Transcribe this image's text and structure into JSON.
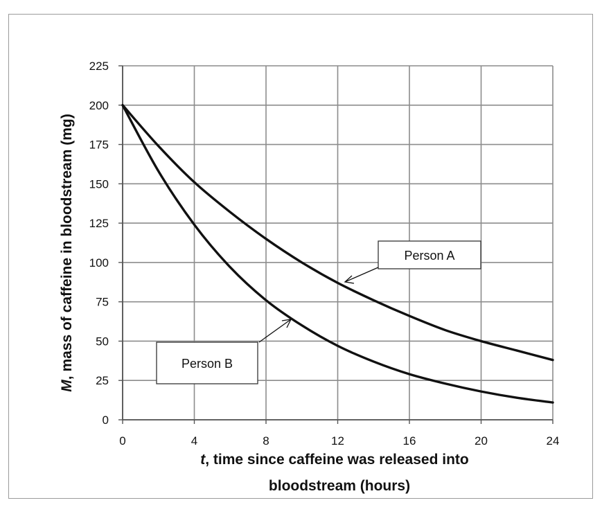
{
  "chart_data": {
    "type": "line",
    "xlabel": {
      "var": "t",
      "text": ", time since caffeine was released into",
      "line2": "bloodstream (hours)"
    },
    "ylabel": {
      "var": "M",
      "text": ", mass of caffeine in bloodstream (mg)"
    },
    "xlim": [
      0,
      24
    ],
    "ylim": [
      0,
      225
    ],
    "xticks": [
      0,
      4,
      8,
      12,
      16,
      20,
      24
    ],
    "yticks": [
      0,
      25,
      50,
      75,
      100,
      125,
      150,
      175,
      200,
      225
    ],
    "grid": true,
    "series": [
      {
        "name": "Person A",
        "x": [
          0,
          2,
          4,
          6,
          8,
          10,
          12,
          14,
          16,
          18,
          20,
          22,
          24
        ],
        "y": [
          200,
          174,
          151,
          132,
          115,
          100,
          87,
          76,
          66,
          57,
          50,
          44,
          38
        ]
      },
      {
        "name": "Person B",
        "x": [
          0,
          2,
          4,
          6,
          8,
          10,
          12,
          14,
          16,
          18,
          20,
          22,
          24
        ],
        "y": [
          200,
          158,
          124,
          97,
          76,
          60,
          47,
          37,
          29,
          23,
          18,
          14,
          11
        ]
      }
    ],
    "annotations": [
      {
        "text": "Person A",
        "points_to": {
          "series": "Person A",
          "x": 12,
          "y": 87
        }
      },
      {
        "text": "Person B",
        "points_to": {
          "series": "Person B",
          "x": 9.5,
          "y": 64
        }
      }
    ]
  }
}
